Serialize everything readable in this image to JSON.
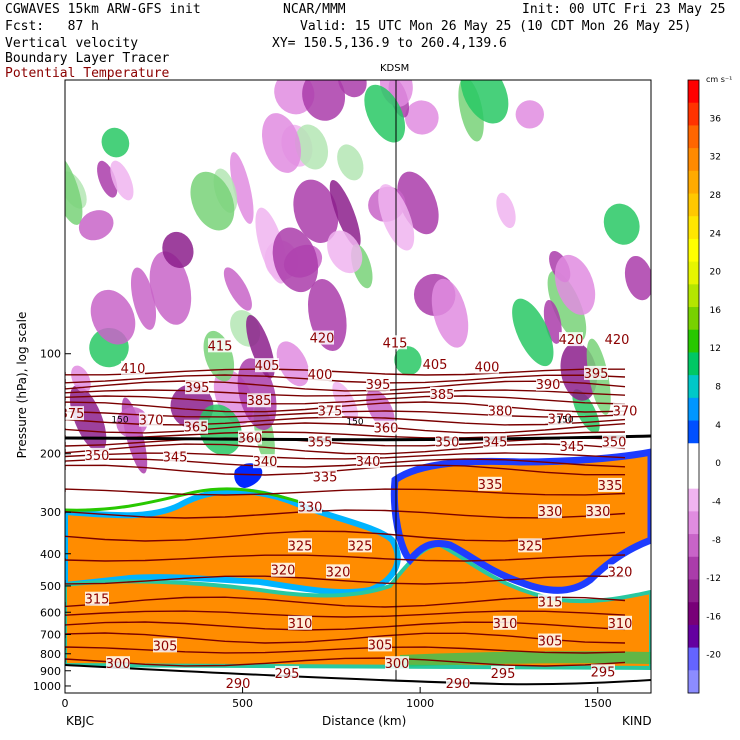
{
  "header": {
    "model": "CGWAVES 15km ARW-GFS init",
    "center": "NCAR/MMM",
    "init": "Init: 00 UTC Fri 23 May 25",
    "fcst": "Fcst:   87 h",
    "valid": "Valid: 15 UTC Mon 26 May 25 (10 CDT Mon 26 May 25)",
    "field1": "Vertical velocity",
    "field2": "Boundary Layer Tracer",
    "field3": "Potential Temperature",
    "xy": "XY= 150.5,136.9 to 260.4,139.6"
  },
  "colors": {
    "theta": "#7a0000",
    "theta_label": "#8b0000"
  },
  "chart_data": {
    "type": "heatmap",
    "xlabel": "Distance (km)",
    "ylabel": "Pressure (hPa), log scale",
    "x_ticks": [
      0,
      500,
      1000,
      1500
    ],
    "xlim": [
      0,
      1650
    ],
    "y_ticks": [
      100,
      200,
      300,
      400,
      500,
      600,
      700,
      800,
      900,
      1000
    ],
    "ylim": [
      1050,
      15
    ],
    "y_scale": "log",
    "left_station": "KBJC",
    "right_station": "KIND",
    "marker_station": "KDSM",
    "marker_x_km": 935,
    "colorbar": {
      "unit": "cm s⁻¹",
      "labels": [
        36,
        32,
        28,
        24,
        20,
        16,
        12,
        8,
        4,
        0,
        -4,
        -8,
        -12,
        -16,
        -20
      ],
      "colors": [
        "#ff0000",
        "#ff3300",
        "#ff6600",
        "#ff8a00",
        "#ffaa00",
        "#ffc800",
        "#ffe600",
        "#ffff00",
        "#e6f500",
        "#b4e600",
        "#78d200",
        "#28c800",
        "#00c864",
        "#00c8c8",
        "#0096ff",
        "#0050ff",
        "#ffffff",
        "#ffffff",
        "#f0b4f0",
        "#e08ce0",
        "#c864c8",
        "#aa3caa",
        "#8c1e8c",
        "#780078",
        "#6400a0",
        "#6464ff",
        "#8c8cff"
      ]
    },
    "theta_labels": [
      {
        "v": "415",
        "x": 220,
        "p": 95
      },
      {
        "v": "420",
        "x": 322,
        "p": 90
      },
      {
        "v": "415",
        "x": 395,
        "p": 93
      },
      {
        "v": "420",
        "x": 571,
        "p": 91
      },
      {
        "v": "420",
        "x": 617,
        "p": 91
      },
      {
        "v": "410",
        "x": 133,
        "p": 111
      },
      {
        "v": "405",
        "x": 267,
        "p": 109
      },
      {
        "v": "400",
        "x": 320,
        "p": 116
      },
      {
        "v": "395",
        "x": 378,
        "p": 124
      },
      {
        "v": "405",
        "x": 435,
        "p": 108
      },
      {
        "v": "400",
        "x": 487,
        "p": 110
      },
      {
        "v": "395",
        "x": 596,
        "p": 115
      },
      {
        "v": "395",
        "x": 197,
        "p": 127
      },
      {
        "v": "385",
        "x": 259,
        "p": 139
      },
      {
        "v": "375",
        "x": 330,
        "p": 149
      },
      {
        "v": "385",
        "x": 442,
        "p": 133
      },
      {
        "v": "380",
        "x": 500,
        "p": 149
      },
      {
        "v": "390",
        "x": 548,
        "p": 124
      },
      {
        "v": "370",
        "x": 560,
        "p": 158
      },
      {
        "v": "370",
        "x": 625,
        "p": 149
      },
      {
        "v": "375",
        "x": 72,
        "p": 152
      },
      {
        "v": "370",
        "x": 151,
        "p": 159
      },
      {
        "v": "365",
        "x": 196,
        "p": 167
      },
      {
        "v": "360",
        "x": 250,
        "p": 180
      },
      {
        "v": "355",
        "x": 320,
        "p": 185
      },
      {
        "v": "360",
        "x": 386,
        "p": 168
      },
      {
        "v": "350",
        "x": 447,
        "p": 185
      },
      {
        "v": "345",
        "x": 495,
        "p": 185
      },
      {
        "v": "345",
        "x": 572,
        "p": 191
      },
      {
        "v": "350",
        "x": 614,
        "p": 185
      },
      {
        "v": "350",
        "x": 97,
        "p": 203
      },
      {
        "v": "345",
        "x": 175,
        "p": 205
      },
      {
        "v": "340",
        "x": 265,
        "p": 212
      },
      {
        "v": "340",
        "x": 368,
        "p": 212
      },
      {
        "v": "335",
        "x": 325,
        "p": 236
      },
      {
        "v": "335",
        "x": 490,
        "p": 248
      },
      {
        "v": "335",
        "x": 610,
        "p": 250
      },
      {
        "v": "330",
        "x": 310,
        "p": 290
      },
      {
        "v": "330",
        "x": 550,
        "p": 300
      },
      {
        "v": "330",
        "x": 598,
        "p": 300
      },
      {
        "v": "325",
        "x": 300,
        "p": 380
      },
      {
        "v": "325",
        "x": 360,
        "p": 380
      },
      {
        "v": "325",
        "x": 530,
        "p": 380
      },
      {
        "v": "320",
        "x": 283,
        "p": 450
      },
      {
        "v": "320",
        "x": 338,
        "p": 455
      },
      {
        "v": "320",
        "x": 620,
        "p": 455
      },
      {
        "v": "315",
        "x": 97,
        "p": 550
      },
      {
        "v": "315",
        "x": 550,
        "p": 560
      },
      {
        "v": "310",
        "x": 300,
        "p": 650
      },
      {
        "v": "310",
        "x": 505,
        "p": 650
      },
      {
        "v": "310",
        "x": 620,
        "p": 650
      },
      {
        "v": "305",
        "x": 165,
        "p": 760
      },
      {
        "v": "305",
        "x": 380,
        "p": 755
      },
      {
        "v": "305",
        "x": 550,
        "p": 735
      },
      {
        "v": "300",
        "x": 118,
        "p": 860
      },
      {
        "v": "300",
        "x": 397,
        "p": 860
      },
      {
        "v": "295",
        "x": 287,
        "p": 920
      },
      {
        "v": "295",
        "x": 603,
        "p": 910
      },
      {
        "v": "290",
        "x": 238,
        "p": 985
      },
      {
        "v": "290",
        "x": 458,
        "p": 985
      },
      {
        "v": "295",
        "x": 503,
        "p": 920
      }
    ],
    "pv_labels": [
      {
        "v": "150",
        "x": 120,
        "p": 158
      },
      {
        "v": "150",
        "x": 355,
        "p": 160
      },
      {
        "v": "150",
        "x": 565,
        "p": 158
      }
    ]
  }
}
